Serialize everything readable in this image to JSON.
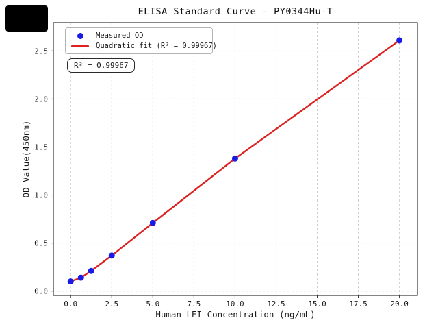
{
  "chart_data": {
    "type": "scatter",
    "title": "ELISA Standard Curve - PY0344Hu-T",
    "xlabel": "Human LEI Concentration (ng/mL)",
    "ylabel": "OD Value(450nm)",
    "xlim": [
      -1.05,
      21.1
    ],
    "ylim": [
      -0.045,
      2.795
    ],
    "grid": true,
    "legend_position": "upper left",
    "x_ticks": {
      "values": [
        0,
        2.5,
        5,
        7.5,
        10,
        12.5,
        15,
        17.5,
        20
      ],
      "labels": [
        "0.0",
        "2.5",
        "5.0",
        "7.5",
        "10.0",
        "12.5",
        "15.0",
        "17.5",
        "20.0"
      ]
    },
    "y_ticks": {
      "values": [
        0,
        0.5,
        1,
        1.5,
        2,
        2.5
      ],
      "labels": [
        "0.0",
        "0.5",
        "1.0",
        "1.5",
        "2.0",
        "2.5"
      ]
    },
    "series": [
      {
        "name": "Measured OD",
        "kind": "scatter",
        "marker": "circle",
        "color": "#1a1ae6",
        "x": [
          0,
          0.625,
          1.25,
          2.5,
          5,
          10,
          20
        ],
        "y": [
          0.1,
          0.14,
          0.21,
          0.37,
          0.71,
          1.38,
          2.61
        ]
      },
      {
        "name": "Quadratic fit (R² = 0.99967)",
        "kind": "line",
        "color": "#dd2020",
        "x": [
          0,
          0.625,
          1.25,
          2.5,
          5,
          10,
          20
        ],
        "y": [
          0.1,
          0.14,
          0.21,
          0.37,
          0.71,
          1.38,
          2.61
        ]
      }
    ],
    "annotation": "R² = 0.99967",
    "r_squared": "0.99967"
  }
}
